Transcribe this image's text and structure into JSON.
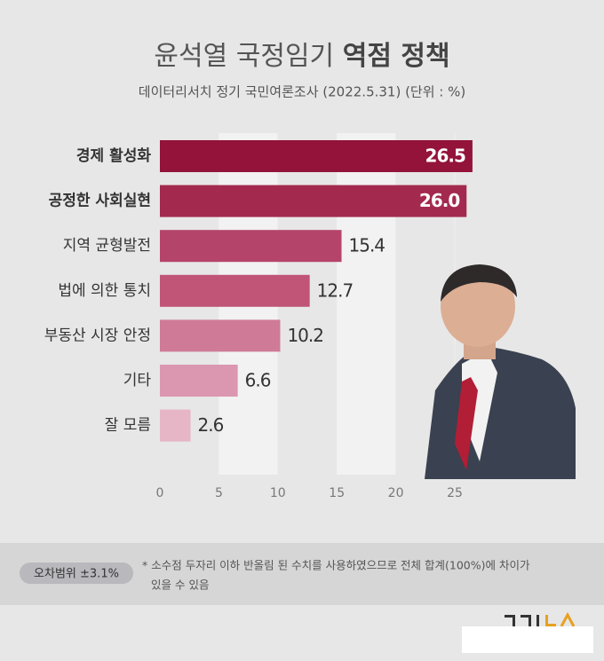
{
  "chart_data": {
    "type": "bar",
    "orientation": "horizontal",
    "title": "윤석열 국정임기",
    "title_bold": "역점 정책",
    "subtitle": "데이터리서치 정기 국민여론조사 (2022.5.31)  (단위 : %)",
    "categories": [
      "경제 활성화",
      "공정한 사회실현",
      "지역 균형발전",
      "법에 의한 통치",
      "부동산 시장 안정",
      "기타",
      "잘 모름"
    ],
    "values": [
      26.5,
      26.0,
      15.4,
      12.7,
      10.2,
      6.6,
      2.6
    ],
    "value_labels": [
      "26.5",
      "26.0",
      "15.4",
      "12.7",
      "10.2",
      "6.6",
      "2.6"
    ],
    "colors": [
      "#93133a",
      "#a32a4e",
      "#b5446a",
      "#c05578",
      "#cf7a97",
      "#dc97b0",
      "#e7b6c6"
    ],
    "xlim": [
      0,
      25
    ],
    "xticks": [
      0,
      5,
      10,
      15,
      20,
      25
    ],
    "margin_of_error": "오차범위 ±3.1%",
    "note_lines": [
      "* 소수점 두자리 이하 반올림 된 수치를 사용하였으므로 전체 합계(100%)에 차이가",
      "있을 수 있음"
    ]
  }
}
